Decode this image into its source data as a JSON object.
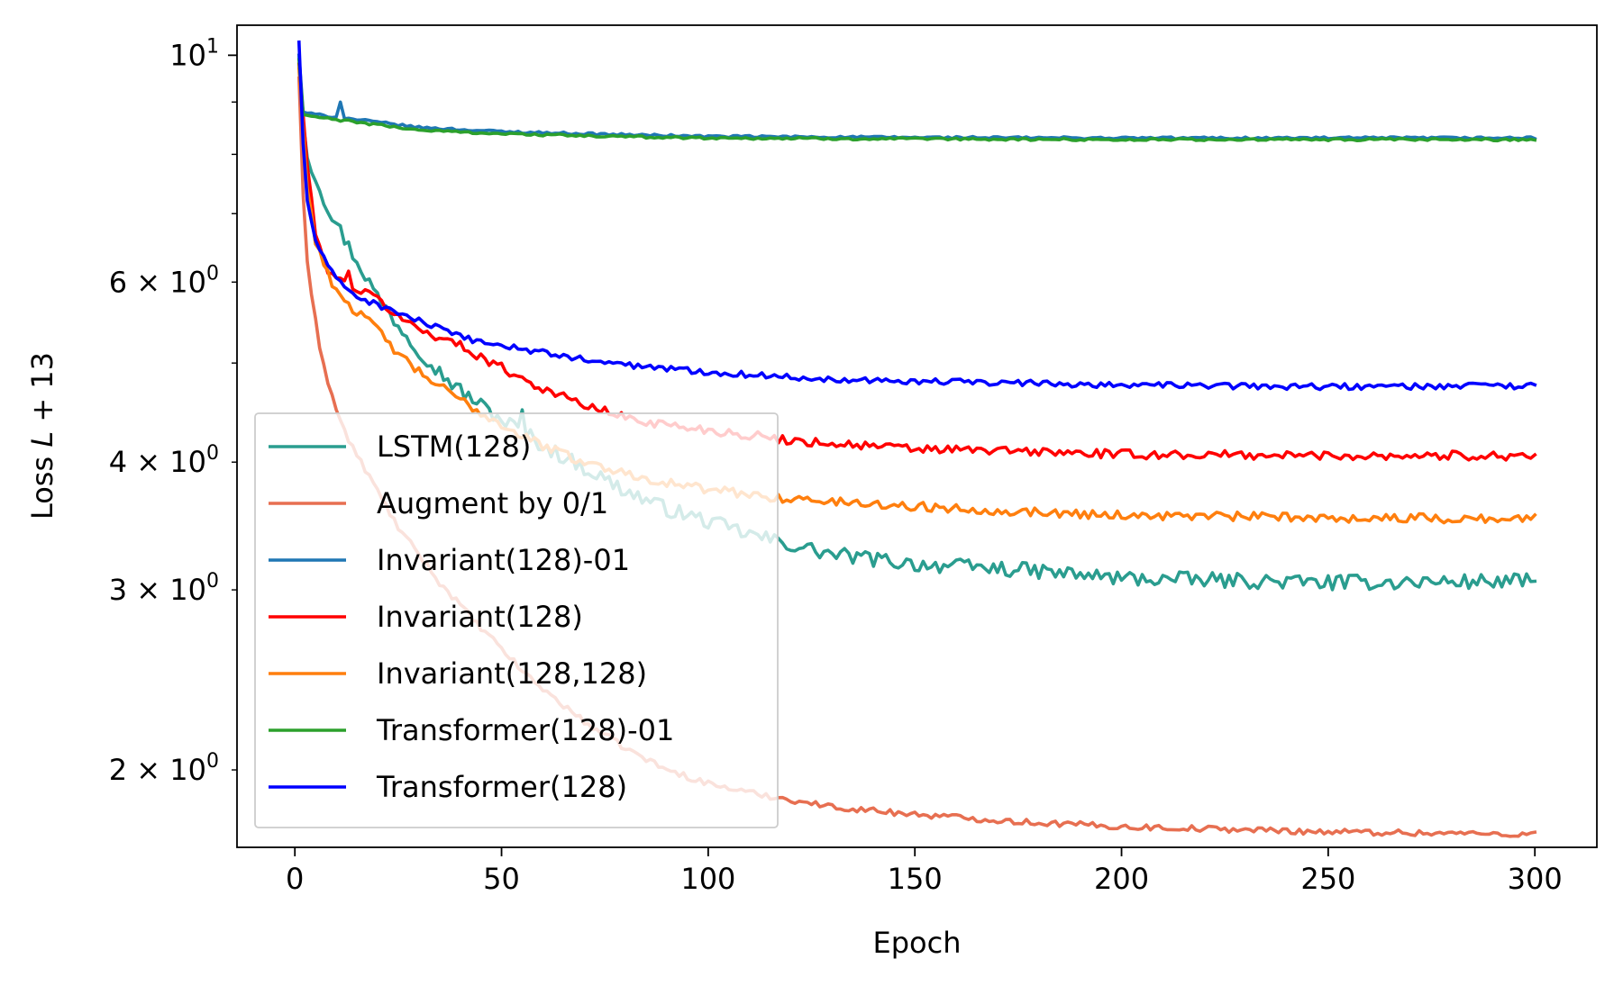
{
  "chart_data": {
    "type": "line",
    "title": "",
    "xlabel": "Epoch",
    "ylabel_prefix": "Loss ",
    "ylabel_var": "L",
    "ylabel_suffix": " + 13",
    "yscale": "log",
    "xlim": [
      -14,
      315
    ],
    "ylim": [
      1.68,
      10.7
    ],
    "xticks": [
      0,
      50,
      100,
      150,
      200,
      250,
      300
    ],
    "xtick_labels": [
      "0",
      "50",
      "100",
      "150",
      "200",
      "250",
      "300"
    ],
    "yticks_major": [
      {
        "value": 10,
        "mantissa": "",
        "base": "10",
        "exp": "1"
      }
    ],
    "yticks_minor": [
      {
        "value": 2,
        "mantissa": "2",
        "base": "10",
        "exp": "0"
      },
      {
        "value": 3,
        "mantissa": "3",
        "base": "10",
        "exp": "0"
      },
      {
        "value": 4,
        "mantissa": "4",
        "base": "10",
        "exp": "0"
      },
      {
        "value": 6,
        "mantissa": "6",
        "base": "10",
        "exp": "0"
      }
    ],
    "yticks_minor_unlabeled": [
      5,
      7,
      8,
      9
    ],
    "grid": false,
    "legend_position": "lower-left",
    "series": [
      {
        "name": "LSTM(128)",
        "color": "#2a9d8f",
        "noise": 0.01,
        "spike": {
          "epoch": 55,
          "value": 4.5
        },
        "points": [
          [
            1,
            10.0
          ],
          [
            2,
            8.6
          ],
          [
            3,
            8.0
          ],
          [
            5,
            7.6
          ],
          [
            8,
            7.1
          ],
          [
            10,
            6.85
          ],
          [
            13,
            6.5
          ],
          [
            16,
            6.2
          ],
          [
            20,
            5.8
          ],
          [
            25,
            5.45
          ],
          [
            30,
            5.15
          ],
          [
            35,
            4.9
          ],
          [
            40,
            4.7
          ],
          [
            45,
            4.55
          ],
          [
            50,
            4.4
          ],
          [
            55,
            4.3
          ],
          [
            60,
            4.15
          ],
          [
            70,
            3.95
          ],
          [
            80,
            3.75
          ],
          [
            90,
            3.6
          ],
          [
            100,
            3.5
          ],
          [
            110,
            3.4
          ],
          [
            120,
            3.32
          ],
          [
            130,
            3.25
          ],
          [
            150,
            3.18
          ],
          [
            175,
            3.14
          ],
          [
            200,
            3.08
          ],
          [
            250,
            3.05
          ],
          [
            300,
            3.06
          ]
        ]
      },
      {
        "name": "Augment by 0/1",
        "color": "#e76f51",
        "noise": 0.004,
        "points": [
          [
            1,
            9.5
          ],
          [
            2,
            7.3
          ],
          [
            3,
            6.3
          ],
          [
            4,
            5.8
          ],
          [
            5,
            5.5
          ],
          [
            6,
            5.2
          ],
          [
            8,
            4.8
          ],
          [
            10,
            4.5
          ],
          [
            13,
            4.2
          ],
          [
            16,
            4.0
          ],
          [
            20,
            3.75
          ],
          [
            25,
            3.45
          ],
          [
            30,
            3.25
          ],
          [
            35,
            3.05
          ],
          [
            40,
            2.9
          ],
          [
            45,
            2.75
          ],
          [
            50,
            2.63
          ],
          [
            55,
            2.5
          ],
          [
            60,
            2.4
          ],
          [
            70,
            2.23
          ],
          [
            80,
            2.1
          ],
          [
            90,
            2.0
          ],
          [
            100,
            1.94
          ],
          [
            110,
            1.9
          ],
          [
            120,
            1.87
          ],
          [
            130,
            1.84
          ],
          [
            150,
            1.81
          ],
          [
            175,
            1.78
          ],
          [
            200,
            1.76
          ],
          [
            250,
            1.74
          ],
          [
            300,
            1.73
          ]
        ]
      },
      {
        "name": "Invariant(128)-01",
        "color": "#1f77b4",
        "noise": 0.0015,
        "spike": {
          "epoch": 11,
          "value": 9.0
        },
        "points": [
          [
            1,
            10.0
          ],
          [
            2,
            8.8
          ],
          [
            5,
            8.75
          ],
          [
            10,
            8.7
          ],
          [
            20,
            8.6
          ],
          [
            30,
            8.5
          ],
          [
            50,
            8.42
          ],
          [
            75,
            8.37
          ],
          [
            100,
            8.33
          ],
          [
            150,
            8.31
          ],
          [
            200,
            8.3
          ],
          [
            250,
            8.3
          ],
          [
            300,
            8.3
          ]
        ]
      },
      {
        "name": "Invariant(128)",
        "color": "#ff0000",
        "noise": 0.006,
        "spike": {
          "epoch": 13,
          "value": 6.15
        },
        "points": [
          [
            1,
            9.8
          ],
          [
            3,
            7.8
          ],
          [
            5,
            6.7
          ],
          [
            7,
            6.25
          ],
          [
            10,
            6.05
          ],
          [
            15,
            5.9
          ],
          [
            20,
            5.78
          ],
          [
            25,
            5.55
          ],
          [
            30,
            5.4
          ],
          [
            40,
            5.2
          ],
          [
            50,
            4.95
          ],
          [
            60,
            4.72
          ],
          [
            70,
            4.55
          ],
          [
            80,
            4.42
          ],
          [
            90,
            4.35
          ],
          [
            100,
            4.3
          ],
          [
            120,
            4.2
          ],
          [
            150,
            4.12
          ],
          [
            175,
            4.1
          ],
          [
            200,
            4.07
          ],
          [
            250,
            4.06
          ],
          [
            300,
            4.06
          ]
        ]
      },
      {
        "name": "Invariant(128,128)",
        "color": "#ff7f0e",
        "noise": 0.006,
        "points": [
          [
            1,
            9.7
          ],
          [
            3,
            7.4
          ],
          [
            5,
            6.6
          ],
          [
            8,
            6.1
          ],
          [
            10,
            5.9
          ],
          [
            15,
            5.6
          ],
          [
            20,
            5.4
          ],
          [
            25,
            5.1
          ],
          [
            30,
            4.9
          ],
          [
            40,
            4.6
          ],
          [
            50,
            4.35
          ],
          [
            60,
            4.15
          ],
          [
            70,
            4.0
          ],
          [
            80,
            3.9
          ],
          [
            90,
            3.82
          ],
          [
            100,
            3.76
          ],
          [
            120,
            3.68
          ],
          [
            150,
            3.62
          ],
          [
            175,
            3.58
          ],
          [
            200,
            3.55
          ],
          [
            250,
            3.53
          ],
          [
            300,
            3.52
          ]
        ]
      },
      {
        "name": "Transformer(128)-01",
        "color": "#2ca02c",
        "noise": 0.0015,
        "points": [
          [
            1,
            9.9
          ],
          [
            2,
            8.75
          ],
          [
            5,
            8.7
          ],
          [
            10,
            8.65
          ],
          [
            20,
            8.55
          ],
          [
            30,
            8.45
          ],
          [
            50,
            8.38
          ],
          [
            75,
            8.33
          ],
          [
            100,
            8.3
          ],
          [
            150,
            8.28
          ],
          [
            200,
            8.27
          ],
          [
            250,
            8.27
          ],
          [
            300,
            8.27
          ]
        ]
      },
      {
        "name": "Transformer(128)",
        "color": "#0000ff",
        "noise": 0.004,
        "points": [
          [
            1,
            10.3
          ],
          [
            2,
            8.2
          ],
          [
            3,
            7.2
          ],
          [
            5,
            6.6
          ],
          [
            8,
            6.2
          ],
          [
            10,
            6.05
          ],
          [
            13,
            5.9
          ],
          [
            16,
            5.78
          ],
          [
            20,
            5.7
          ],
          [
            25,
            5.6
          ],
          [
            30,
            5.5
          ],
          [
            40,
            5.3
          ],
          [
            50,
            5.2
          ],
          [
            60,
            5.12
          ],
          [
            75,
            5.0
          ],
          [
            100,
            4.9
          ],
          [
            125,
            4.83
          ],
          [
            150,
            4.8
          ],
          [
            175,
            4.78
          ],
          [
            200,
            4.76
          ],
          [
            250,
            4.74
          ],
          [
            300,
            4.75
          ]
        ]
      }
    ]
  }
}
